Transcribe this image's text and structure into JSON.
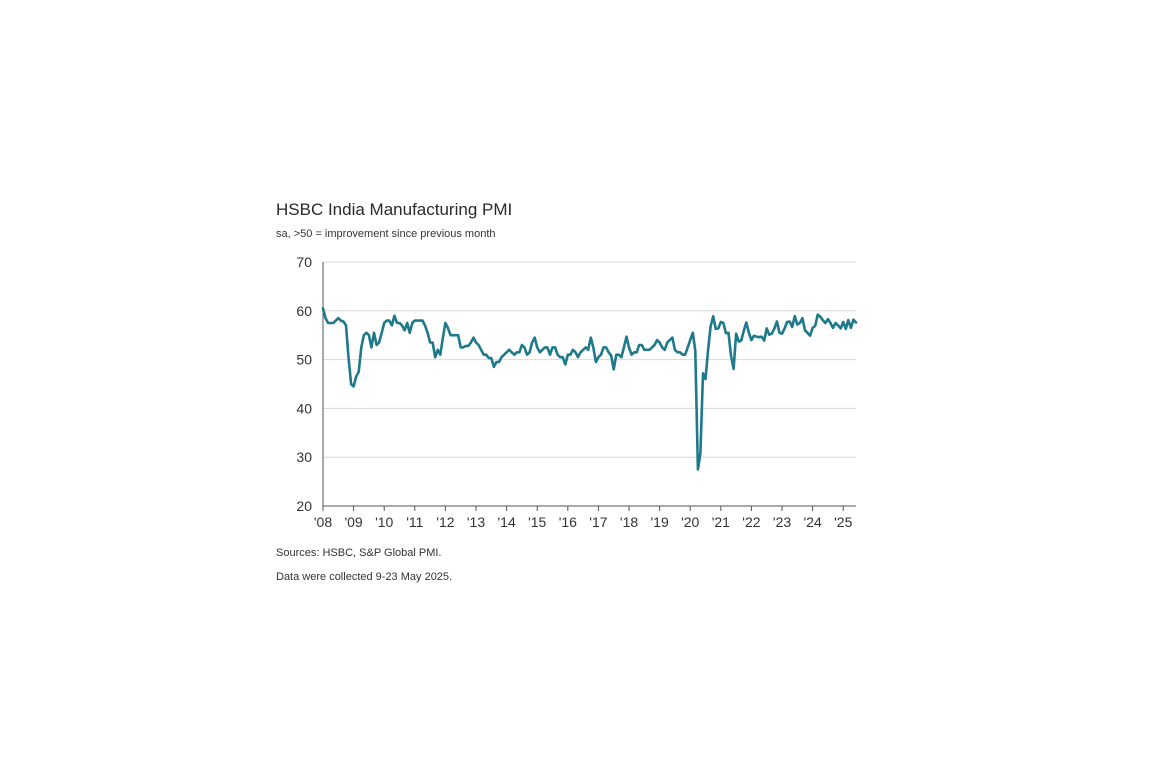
{
  "chart": {
    "title": "HSBC India Manufacturing PMI",
    "subtitle": "sa, >50 = improvement since previous month",
    "footnotes": [
      "Sources: HSBC, S&P Global PMI.",
      "Data were collected 9-23 May 2025."
    ]
  },
  "colors": {
    "line": "#1e7a8a",
    "grid": "#d9d9d9",
    "axis": "#555555"
  },
  "chart_data": {
    "type": "line",
    "title": "HSBC India Manufacturing PMI",
    "subtitle": "sa, >50 = improvement since previous month",
    "xlabel": "",
    "ylabel": "",
    "ylim": [
      20,
      70
    ],
    "yticks": [
      20,
      30,
      40,
      50,
      60,
      70
    ],
    "xlim": [
      2008.0,
      2025.417
    ],
    "xtick_labels": [
      "'08",
      "'09",
      "'10",
      "'11",
      "'12",
      "'13",
      "'14",
      "'15",
      "'16",
      "'17",
      "'18",
      "'19",
      "'20",
      "'21",
      "'22",
      "'23",
      "'24",
      "'25"
    ],
    "grid": true,
    "legend": "none",
    "series": [
      {
        "x": [
          2008.0,
          2008.083,
          2008.167,
          2008.25,
          2008.333,
          2008.417,
          2008.5,
          2008.583,
          2008.667,
          2008.75,
          2008.833,
          2008.917,
          2009.0,
          2009.083,
          2009.167,
          2009.25,
          2009.333,
          2009.417,
          2009.5,
          2009.583,
          2009.667,
          2009.75,
          2009.833,
          2009.917,
          2010.0,
          2010.083,
          2010.167,
          2010.25,
          2010.333,
          2010.417,
          2010.5,
          2010.583,
          2010.667,
          2010.75,
          2010.833,
          2010.917,
          2011.0,
          2011.083,
          2011.167,
          2011.25,
          2011.333,
          2011.417,
          2011.5,
          2011.583,
          2011.667,
          2011.75,
          2011.833,
          2011.917,
          2012.0,
          2012.083,
          2012.167,
          2012.25,
          2012.333,
          2012.417,
          2012.5,
          2012.583,
          2012.667,
          2012.75,
          2012.833,
          2012.917,
          2013.0,
          2013.083,
          2013.167,
          2013.25,
          2013.333,
          2013.417,
          2013.5,
          2013.583,
          2013.667,
          2013.75,
          2013.833,
          2013.917,
          2014.0,
          2014.083,
          2014.167,
          2014.25,
          2014.333,
          2014.417,
          2014.5,
          2014.583,
          2014.667,
          2014.75,
          2014.833,
          2014.917,
          2015.0,
          2015.083,
          2015.167,
          2015.25,
          2015.333,
          2015.417,
          2015.5,
          2015.583,
          2015.667,
          2015.75,
          2015.833,
          2015.917,
          2016.0,
          2016.083,
          2016.167,
          2016.25,
          2016.333,
          2016.417,
          2016.5,
          2016.583,
          2016.667,
          2016.75,
          2016.833,
          2016.917,
          2017.0,
          2017.083,
          2017.167,
          2017.25,
          2017.333,
          2017.417,
          2017.5,
          2017.583,
          2017.667,
          2017.75,
          2017.833,
          2017.917,
          2018.0,
          2018.083,
          2018.167,
          2018.25,
          2018.333,
          2018.417,
          2018.5,
          2018.583,
          2018.667,
          2018.75,
          2018.833,
          2018.917,
          2019.0,
          2019.083,
          2019.167,
          2019.25,
          2019.333,
          2019.417,
          2019.5,
          2019.583,
          2019.667,
          2019.75,
          2019.833,
          2019.917,
          2020.0,
          2020.083,
          2020.167,
          2020.25,
          2020.333,
          2020.417,
          2020.5,
          2020.583,
          2020.667,
          2020.75,
          2020.833,
          2020.917,
          2021.0,
          2021.083,
          2021.167,
          2021.25,
          2021.333,
          2021.417,
          2021.5,
          2021.583,
          2021.667,
          2021.75,
          2021.833,
          2021.917,
          2022.0,
          2022.083,
          2022.167,
          2022.25,
          2022.333,
          2022.417,
          2022.5,
          2022.583,
          2022.667,
          2022.75,
          2022.833,
          2022.917,
          2023.0,
          2023.083,
          2023.167,
          2023.25,
          2023.333,
          2023.417,
          2023.5,
          2023.583,
          2023.667,
          2023.75,
          2023.833,
          2023.917,
          2024.0,
          2024.083,
          2024.167,
          2024.25,
          2024.333,
          2024.417,
          2024.5,
          2024.583,
          2024.667,
          2024.75,
          2024.833,
          2024.917,
          2025.0,
          2025.083,
          2025.167,
          2025.25,
          2025.333,
          2025.417
        ],
        "y": [
          60.5,
          58.5,
          57.5,
          57.5,
          57.5,
          58.0,
          58.5,
          58.0,
          57.8,
          57.0,
          50.5,
          45.0,
          44.5,
          46.5,
          47.5,
          52.5,
          55.0,
          55.5,
          55.0,
          52.5,
          55.5,
          53.0,
          53.5,
          55.5,
          57.5,
          58.0,
          58.0,
          57.0,
          59.0,
          57.5,
          57.5,
          57.0,
          56.0,
          57.5,
          55.5,
          57.5,
          58.0,
          58.0,
          58.0,
          58.0,
          57.0,
          55.5,
          53.5,
          53.5,
          50.5,
          52.0,
          51.0,
          54.5,
          57.5,
          56.5,
          55.0,
          55.0,
          55.0,
          55.0,
          52.5,
          52.5,
          52.8,
          52.8,
          53.5,
          54.5,
          53.5,
          53.0,
          52.0,
          51.0,
          51.0,
          50.3,
          50.3,
          48.5,
          49.5,
          49.5,
          50.5,
          51.0,
          51.5,
          52.0,
          51.5,
          51.0,
          51.5,
          51.5,
          53.0,
          52.5,
          51.0,
          51.5,
          53.5,
          54.5,
          52.5,
          51.5,
          52.0,
          52.5,
          52.5,
          51.0,
          52.5,
          52.5,
          51.0,
          50.5,
          50.5,
          49.0,
          51.0,
          51.0,
          52.0,
          51.5,
          50.5,
          51.5,
          52.0,
          52.5,
          52.0,
          54.5,
          52.5,
          49.5,
          50.5,
          51.0,
          52.5,
          52.5,
          51.5,
          50.8,
          48.0,
          51.0,
          51.0,
          50.5,
          52.5,
          54.7,
          52.5,
          51.0,
          51.5,
          51.5,
          53.0,
          53.0,
          52.0,
          52.0,
          52.0,
          52.5,
          53.0,
          54.0,
          53.5,
          52.5,
          52.0,
          53.5,
          54.0,
          54.5,
          52.0,
          51.5,
          51.5,
          51.0,
          51.0,
          52.5,
          54.0,
          55.5,
          51.8,
          27.5,
          30.8,
          47.2,
          46.0,
          52.0,
          56.8,
          58.9,
          56.3,
          56.4,
          57.7,
          57.5,
          55.4,
          55.5,
          50.8,
          48.1,
          55.3,
          53.7,
          53.9,
          55.9,
          57.6,
          55.5,
          54.0,
          54.9,
          54.7,
          54.6,
          54.7,
          53.9,
          56.4,
          55.1,
          55.3,
          56.4,
          57.8,
          55.5,
          55.3,
          56.4,
          57.7,
          57.8,
          56.7,
          58.9,
          57.2,
          57.5,
          58.5,
          56.0,
          55.5,
          54.9,
          56.5,
          56.9,
          59.2,
          58.8,
          58.1,
          57.5,
          58.3,
          57.5,
          56.5,
          57.5,
          57.0,
          56.4,
          57.7,
          56.3,
          58.1,
          56.5,
          58.2,
          57.6
        ]
      }
    ]
  }
}
